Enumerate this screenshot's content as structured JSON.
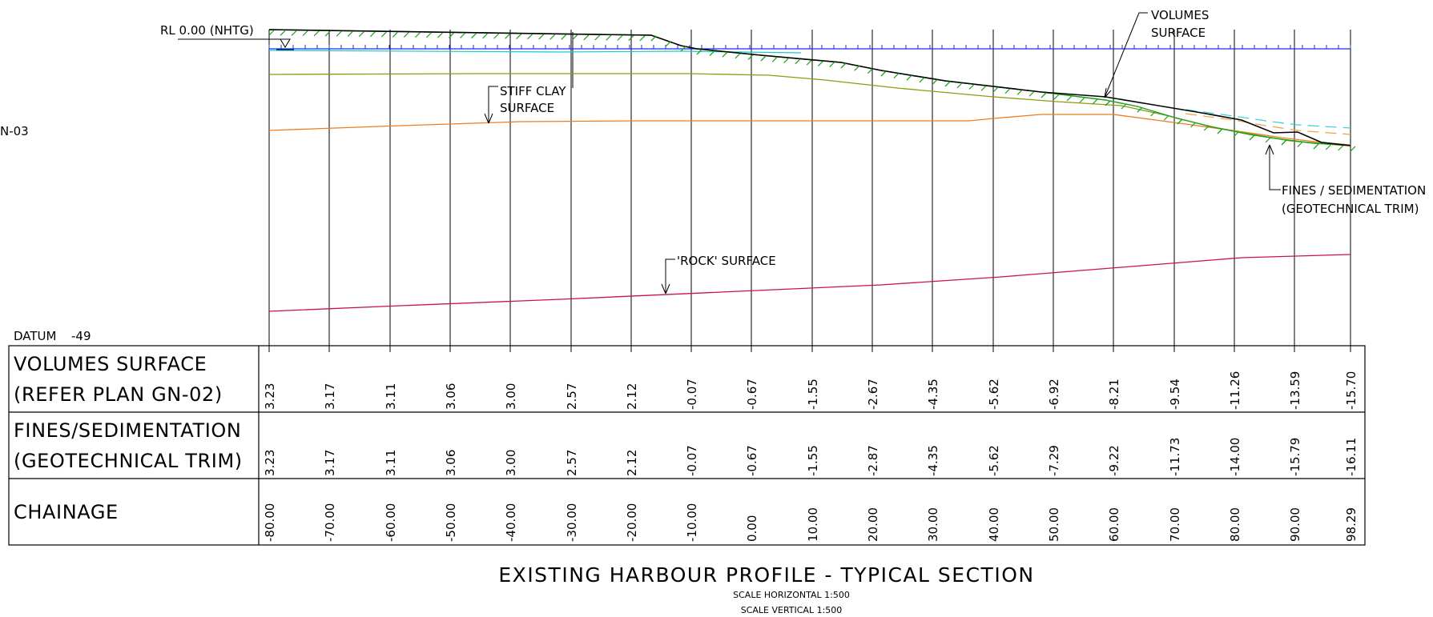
{
  "drawing": {
    "title": "EXISTING HARBOUR PROFILE - TYPICAL SECTION",
    "scale_horizontal": "SCALE HORIZONTAL 1:500",
    "scale_vertical": "SCALE VERTICAL 1:500",
    "datum_label": "DATUM",
    "datum_value": "-49",
    "rl_label": "RL 0.00 (NHTG)",
    "margin_fragment": "N-03"
  },
  "callouts": {
    "volumes_surface": [
      "VOLUMES",
      "SURFACE"
    ],
    "stiff_clay": [
      "STIFF CLAY",
      "SURFACE"
    ],
    "fines": [
      "FINES / SEDIMENTATION",
      "(GEOTECHNICAL TRIM)"
    ],
    "rock": "'ROCK' SURFACE"
  },
  "table": {
    "rows": [
      {
        "label_lines": [
          "VOLUMES SURFACE",
          "(REFER PLAN GN-02)"
        ],
        "values": [
          "3.23",
          "3.17",
          "3.11",
          "3.06",
          "3.00",
          "2.57",
          "2.12",
          "-0.07",
          "-0.67",
          "-1.55",
          "-2.67",
          "-4.35",
          "-5.62",
          "-6.92",
          "-8.21",
          "-9.54",
          "-11.26",
          "-13.59",
          "-15.70"
        ]
      },
      {
        "label_lines": [
          "FINES/SEDIMENTATION",
          "(GEOTECHNICAL TRIM)"
        ],
        "values": [
          "3.23",
          "3.17",
          "3.11",
          "3.06",
          "3.00",
          "2.57",
          "2.12",
          "-0.07",
          "-0.67",
          "-1.55",
          "-2.87",
          "-4.35",
          "-5.62",
          "-7.29",
          "-9.22",
          "-11.73",
          "-14.00",
          "-15.79",
          "-16.11"
        ]
      },
      {
        "label_lines": [
          "CHAINAGE"
        ],
        "values": [
          "-80.00",
          "-70.00",
          "-60.00",
          "-50.00",
          "-40.00",
          "-30.00",
          "-20.00",
          "-10.00",
          "0.00",
          "10.00",
          "20.00",
          "30.00",
          "40.00",
          "50.00",
          "60.00",
          "70.00",
          "80.00",
          "90.00",
          "98.29"
        ]
      }
    ]
  },
  "colors": {
    "line": "#000000",
    "water": "#1d2ee0",
    "water_cyan": "#1ec6d8",
    "hatch": "#1aa01a",
    "stiff_clay": "#8f9a10",
    "orange": "#ee7d1e",
    "rock": "#c8144a",
    "dashed_cyan": "#33d1dc",
    "dashed_orange": "#f0a040"
  },
  "icons": {
    "water_level": "water-level-triangle-icon"
  }
}
